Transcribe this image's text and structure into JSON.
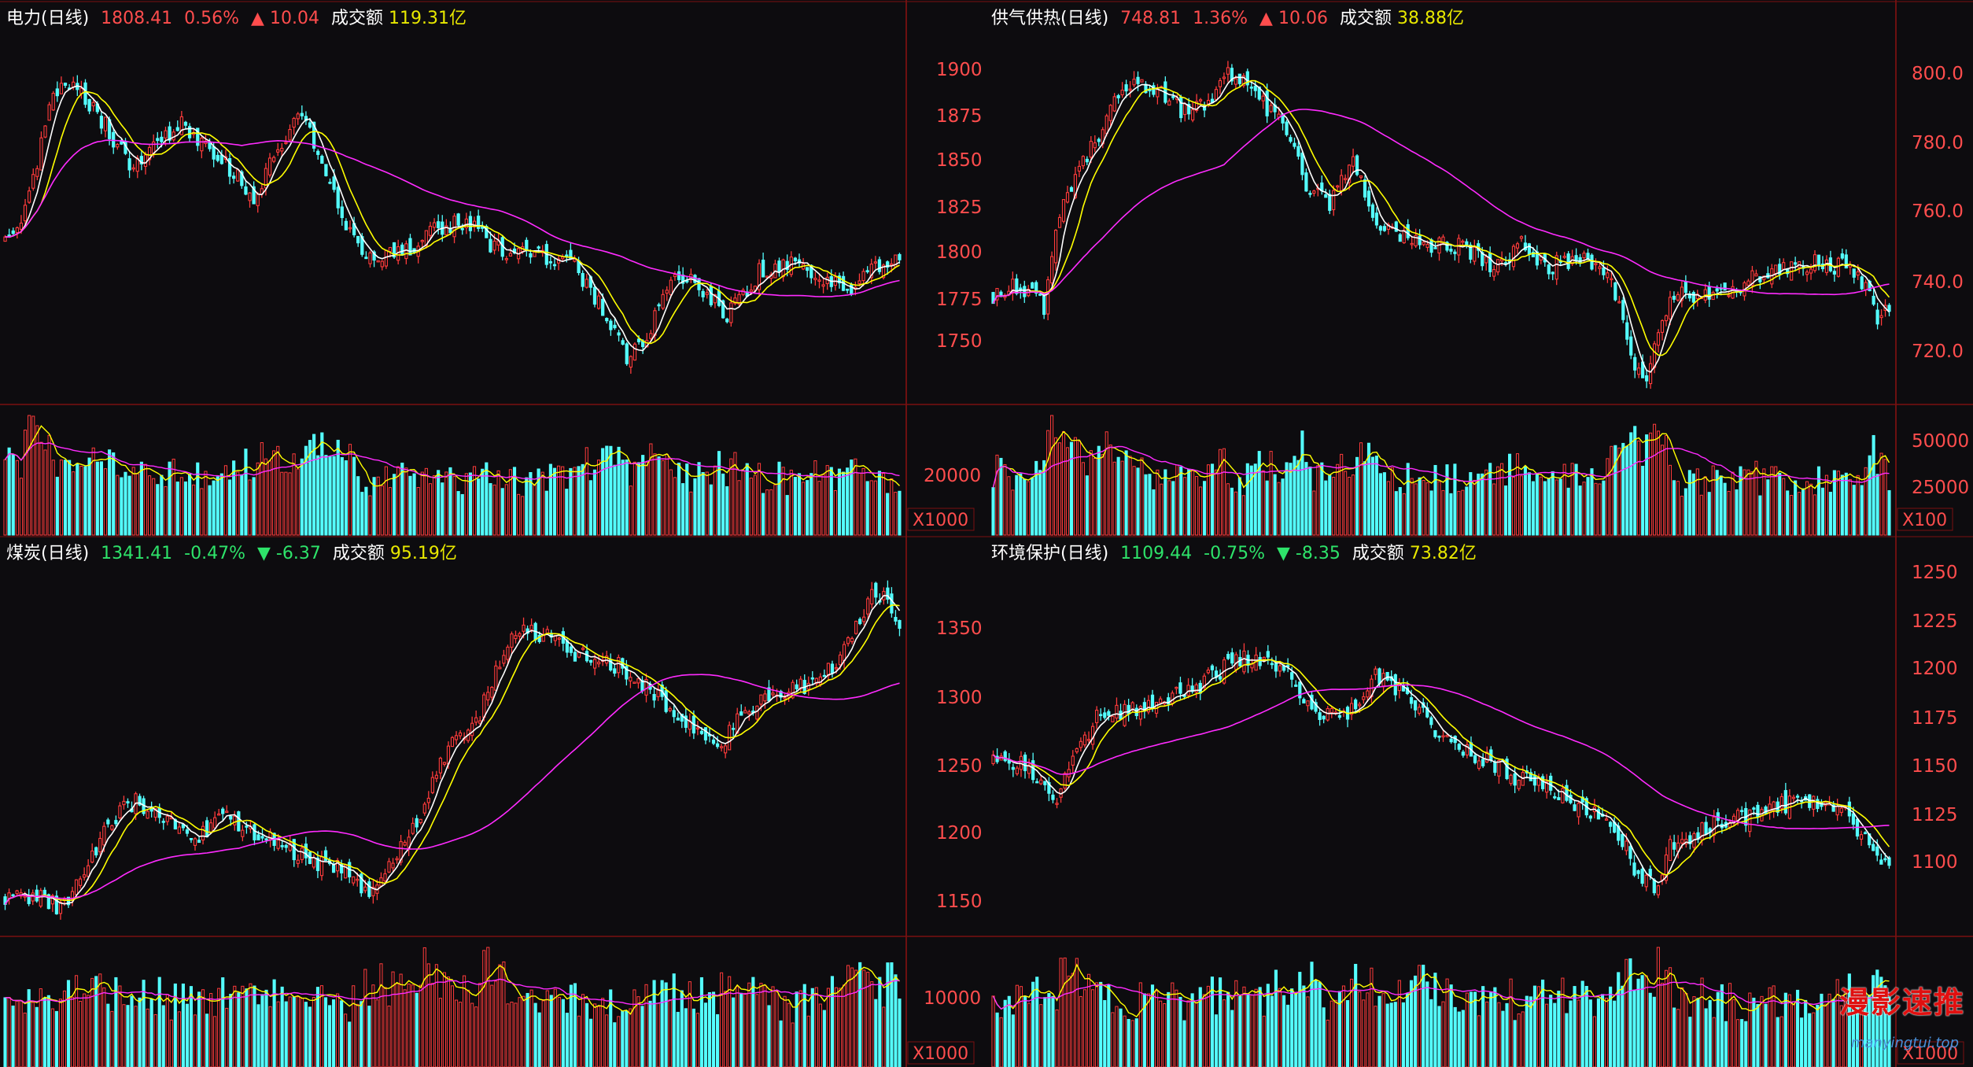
{
  "colors": {
    "up": "#ff3b3b",
    "down": "#54ffff",
    "ma5": "#ffffff",
    "ma10": "#ffff00",
    "ma60": "#ff2bff",
    "price": "#ff4d4d",
    "pct_up": "#ff4d4d",
    "pct_down": "#2ee36a",
    "amount": "#e8e800",
    "grid": "#3a0a0a",
    "border": "#7a1010"
  },
  "watermark": {
    "text": "漫影速推",
    "url": "manyingtui.top"
  },
  "panels": [
    {
      "title": "电力(日线)",
      "price": "1808.41",
      "pct": "0.56%",
      "arrow": "▲",
      "change": "10.04",
      "amt_label": "成交额",
      "amount": "119.31亿",
      "dir": "up",
      "yticks": [
        "1900",
        "1875",
        "1850",
        "1825",
        "1800",
        "1775",
        "1750"
      ],
      "vticks": [
        "20000"
      ],
      "unit": "X1000"
    },
    {
      "title": "供气供热(日线)",
      "price": "748.81",
      "pct": "1.36%",
      "arrow": "▲",
      "change": "10.06",
      "amt_label": "成交额",
      "amount": "38.88亿",
      "dir": "up",
      "yticks": [
        "800.0",
        "780.0",
        "760.0",
        "740.0",
        "720.0"
      ],
      "vticks": [
        "50000",
        "25000"
      ],
      "unit": "X100"
    },
    {
      "title": "煤炭(日线)",
      "price": "1341.41",
      "pct": "-0.47%",
      "arrow": "▼",
      "change": "-6.37",
      "amt_label": "成交额",
      "amount": "95.19亿",
      "dir": "down",
      "yticks": [
        "1350",
        "1300",
        "1250",
        "1200",
        "1150"
      ],
      "vticks": [
        "10000"
      ],
      "unit": "X1000"
    },
    {
      "title": "环境保护(日线)",
      "price": "1109.44",
      "pct": "-0.75%",
      "arrow": "▼",
      "change": "-8.35",
      "amt_label": "成交额",
      "amount": "73.82亿",
      "dir": "down",
      "yticks": [
        "1250",
        "1225",
        "1200",
        "1175",
        "1150",
        "1125",
        "1100"
      ],
      "vticks": [],
      "unit": "X1000"
    }
  ],
  "chart_data": [
    {
      "type": "candlestick",
      "title": "电力(日线)",
      "y_range": [
        1738,
        1915
      ],
      "anchors": [
        [
          0,
          1815
        ],
        [
          5,
          1830
        ],
        [
          12,
          1885
        ],
        [
          18,
          1890
        ],
        [
          25,
          1870
        ],
        [
          32,
          1850
        ],
        [
          37,
          1860
        ],
        [
          44,
          1870
        ],
        [
          50,
          1860
        ],
        [
          56,
          1850
        ],
        [
          62,
          1835
        ],
        [
          68,
          1860
        ],
        [
          74,
          1875
        ],
        [
          80,
          1845
        ],
        [
          88,
          1810
        ],
        [
          95,
          1808
        ],
        [
          100,
          1810
        ],
        [
          108,
          1822
        ],
        [
          115,
          1825
        ],
        [
          122,
          1812
        ],
        [
          128,
          1808
        ],
        [
          135,
          1808
        ],
        [
          142,
          1803
        ],
        [
          150,
          1780
        ],
        [
          155,
          1760
        ],
        [
          160,
          1770
        ],
        [
          166,
          1800
        ],
        [
          173,
          1795
        ],
        [
          180,
          1780
        ],
        [
          188,
          1800
        ],
        [
          195,
          1805
        ],
        [
          202,
          1797
        ],
        [
          210,
          1792
        ],
        [
          218,
          1804
        ],
        [
          223,
          1808
        ]
      ],
      "series": [
        "MA5",
        "MA10",
        "MA60",
        "volume"
      ]
    },
    {
      "type": "candlestick",
      "title": "供气供热(日线)",
      "y_range": [
        718,
        811
      ],
      "anchors": [
        [
          0,
          745
        ],
        [
          4,
          748
        ],
        [
          10,
          746
        ],
        [
          13,
          742
        ],
        [
          17,
          765
        ],
        [
          22,
          778
        ],
        [
          27,
          784
        ],
        [
          30,
          792
        ],
        [
          36,
          800
        ],
        [
          42,
          796
        ],
        [
          50,
          790
        ],
        [
          55,
          793
        ],
        [
          60,
          800
        ],
        [
          66,
          798
        ],
        [
          70,
          792
        ],
        [
          75,
          786
        ],
        [
          80,
          772
        ],
        [
          86,
          768
        ],
        [
          92,
          778
        ],
        [
          98,
          762
        ],
        [
          104,
          760
        ],
        [
          112,
          758
        ],
        [
          120,
          757
        ],
        [
          128,
          752
        ],
        [
          135,
          758
        ],
        [
          142,
          752
        ],
        [
          150,
          755
        ],
        [
          158,
          748
        ],
        [
          162,
          735
        ],
        [
          166,
          722
        ],
        [
          170,
          735
        ],
        [
          174,
          745
        ],
        [
          180,
          745
        ],
        [
          188,
          745
        ],
        [
          195,
          750
        ],
        [
          202,
          752
        ],
        [
          210,
          753
        ],
        [
          218,
          752
        ],
        [
          223,
          748
        ],
        [
          226,
          740
        ],
        [
          229,
          743
        ]
      ],
      "series": [
        "MA5",
        "MA10",
        "MA60",
        "volume"
      ]
    },
    {
      "type": "candlestick",
      "title": "煤炭(日线)",
      "y_range": [
        1130,
        1388
      ],
      "anchors": [
        [
          0,
          1155
        ],
        [
          8,
          1160
        ],
        [
          14,
          1150
        ],
        [
          20,
          1175
        ],
        [
          26,
          1210
        ],
        [
          33,
          1225
        ],
        [
          40,
          1210
        ],
        [
          48,
          1200
        ],
        [
          56,
          1215
        ],
        [
          64,
          1203
        ],
        [
          72,
          1190
        ],
        [
          80,
          1180
        ],
        [
          88,
          1175
        ],
        [
          92,
          1160
        ],
        [
          96,
          1180
        ],
        [
          100,
          1195
        ],
        [
          104,
          1210
        ],
        [
          108,
          1240
        ],
        [
          114,
          1270
        ],
        [
          120,
          1285
        ],
        [
          126,
          1330
        ],
        [
          132,
          1345
        ],
        [
          140,
          1335
        ],
        [
          148,
          1322
        ],
        [
          156,
          1318
        ],
        [
          164,
          1300
        ],
        [
          172,
          1280
        ],
        [
          180,
          1262
        ],
        [
          186,
          1285
        ],
        [
          192,
          1300
        ],
        [
          200,
          1302
        ],
        [
          208,
          1315
        ],
        [
          216,
          1350
        ],
        [
          220,
          1372
        ],
        [
          223,
          1362
        ],
        [
          226,
          1341
        ]
      ],
      "series": [
        "MA5",
        "MA10",
        "MA60",
        "volume"
      ]
    },
    {
      "type": "candlestick",
      "title": "环境保护(日线)",
      "y_range": [
        1080,
        1262
      ],
      "anchors": [
        [
          0,
          1168
        ],
        [
          6,
          1166
        ],
        [
          12,
          1158
        ],
        [
          16,
          1150
        ],
        [
          20,
          1168
        ],
        [
          26,
          1188
        ],
        [
          34,
          1192
        ],
        [
          42,
          1197
        ],
        [
          50,
          1202
        ],
        [
          58,
          1212
        ],
        [
          64,
          1218
        ],
        [
          70,
          1216
        ],
        [
          76,
          1205
        ],
        [
          82,
          1188
        ],
        [
          90,
          1192
        ],
        [
          96,
          1208
        ],
        [
          100,
          1205
        ],
        [
          106,
          1195
        ],
        [
          112,
          1178
        ],
        [
          118,
          1172
        ],
        [
          124,
          1168
        ],
        [
          130,
          1160
        ],
        [
          138,
          1155
        ],
        [
          145,
          1148
        ],
        [
          152,
          1140
        ],
        [
          158,
          1128
        ],
        [
          162,
          1110
        ],
        [
          166,
          1105
        ],
        [
          170,
          1125
        ],
        [
          176,
          1130
        ],
        [
          182,
          1136
        ],
        [
          190,
          1140
        ],
        [
          198,
          1145
        ],
        [
          206,
          1147
        ],
        [
          212,
          1144
        ],
        [
          218,
          1132
        ],
        [
          222,
          1122
        ],
        [
          225,
          1112
        ]
      ],
      "series": [
        "MA5",
        "MA10",
        "MA60",
        "volume"
      ]
    }
  ]
}
